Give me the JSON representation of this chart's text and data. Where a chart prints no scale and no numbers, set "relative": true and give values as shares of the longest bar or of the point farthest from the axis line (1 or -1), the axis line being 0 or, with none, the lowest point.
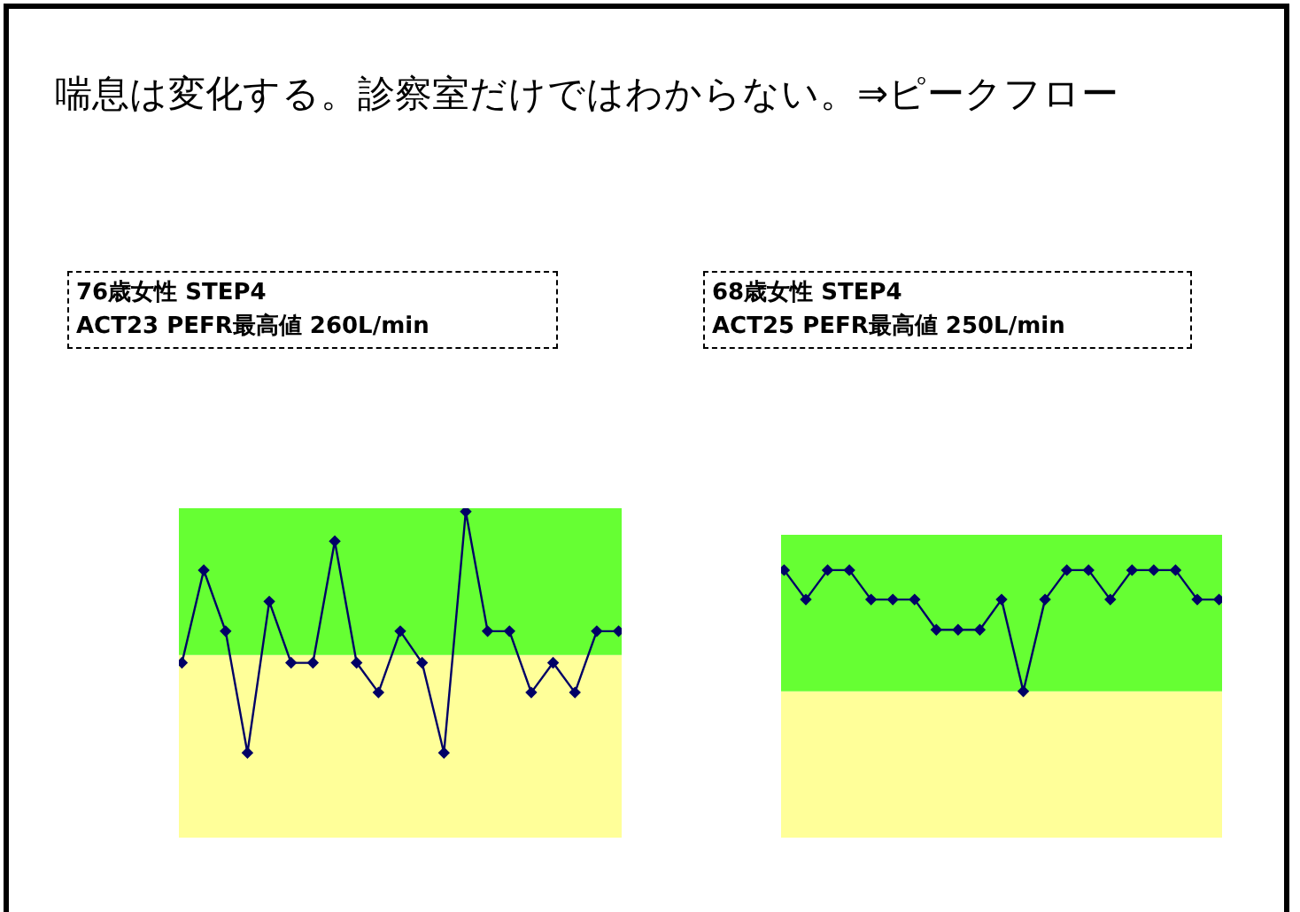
{
  "chart_data": [
    {
      "type": "line",
      "title": "76歳女性 STEP4",
      "subtitle": "ACT23 PEFR最高値 260L/min",
      "annotations": [
        "喘息は変化する。診察室だけではわからない。⇒ピークフロー"
      ],
      "relative": true,
      "marker": "diamond",
      "line_style": "solid",
      "categories": [
        null,
        null,
        null,
        null,
        null,
        null,
        null,
        null,
        null,
        null,
        null,
        null,
        null,
        null,
        null,
        null,
        null,
        null,
        null,
        null,
        null
      ],
      "series": [
        {
          "color": "#000066",
          "values": [
            0.536,
            0.82,
            0.633,
            0.26,
            0.724,
            0.536,
            0.536,
            0.909,
            0.536,
            0.445,
            0.633,
            0.536,
            0.26,
            1,
            0.633,
            0.633,
            0.445,
            0.536,
            0.445,
            0.633,
            0.633
          ]
        }
      ],
      "bands": [
        {
          "axis": "y",
          "from": 0,
          "to": 0.56,
          "color": "#ffff99"
        },
        {
          "axis": "y",
          "from": 0.56,
          "to": 1.01,
          "color": "#66ff33"
        }
      ]
    },
    {
      "type": "line",
      "title": "68歳女性 STEP4",
      "subtitle": "ACT25 PEFR最高値 250L/min",
      "relative": true,
      "marker": "diamond",
      "line_style": "solid",
      "categories": [
        null,
        null,
        null,
        null,
        null,
        null,
        null,
        null,
        null,
        null,
        null,
        null,
        null,
        null,
        null,
        null,
        null,
        null,
        null,
        null,
        null
      ],
      "series": [
        {
          "color": "#000066",
          "values": [
            1,
            0.89,
            1,
            1,
            0.89,
            0.89,
            0.89,
            0.777,
            0.777,
            0.777,
            0.89,
            0.547,
            0.89,
            1,
            1,
            0.89,
            1,
            1,
            1,
            0.89,
            0.89
          ]
        }
      ],
      "bands": [
        {
          "axis": "y",
          "from": 0,
          "to": 0.547,
          "color": "#ffff99"
        },
        {
          "axis": "y",
          "from": 0.547,
          "to": 1.132,
          "color": "#66ff33"
        }
      ]
    }
  ]
}
